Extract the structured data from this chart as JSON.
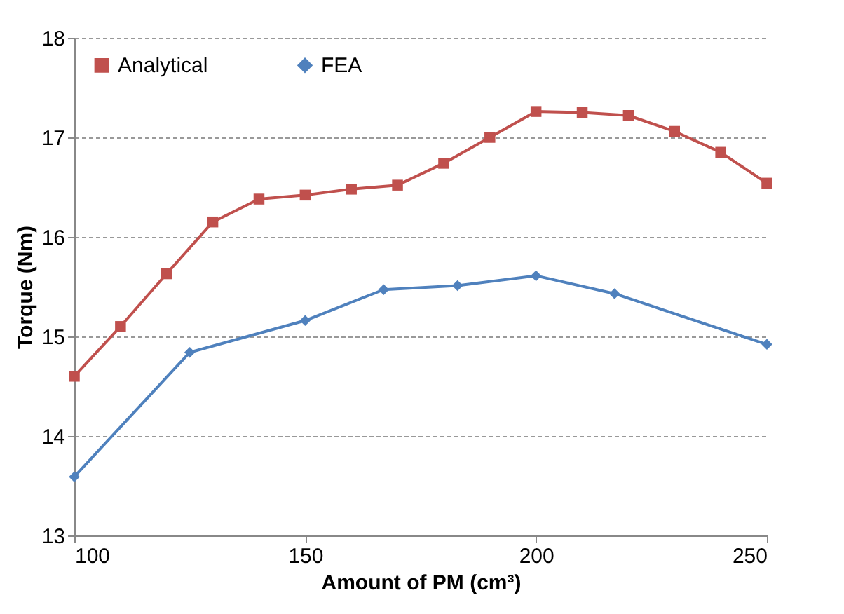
{
  "chart_data": {
    "type": "line",
    "xlabel": "Amount of PM (cm³)",
    "ylabel": "Torque (Nm)",
    "xlim": [
      100,
      250
    ],
    "xticks": [
      100,
      150,
      200,
      250
    ],
    "ylim": [
      13,
      18
    ],
    "yticks": [
      13,
      14,
      15,
      16,
      17,
      18
    ],
    "grid": "y",
    "legend": "top left",
    "line_style": "solid",
    "series": [
      {
        "name": "Analytical",
        "color": "#c0504d",
        "marker": "square",
        "x": [
          100,
          110,
          120,
          130,
          140,
          150,
          160,
          170,
          180,
          190,
          200,
          210,
          220,
          230,
          240,
          250
        ],
        "values": [
          14.6,
          15.1,
          15.63,
          16.15,
          16.38,
          16.42,
          16.48,
          16.52,
          16.74,
          17.0,
          17.26,
          17.25,
          17.22,
          17.06,
          16.85,
          16.54
        ]
      },
      {
        "name": "FEA",
        "color": "#4f81bd",
        "marker": "diamond",
        "x": [
          100,
          125,
          150,
          167,
          183,
          200,
          217,
          250
        ],
        "values": [
          13.59,
          14.84,
          15.16,
          15.47,
          15.51,
          15.61,
          15.43,
          14.92
        ]
      }
    ]
  }
}
